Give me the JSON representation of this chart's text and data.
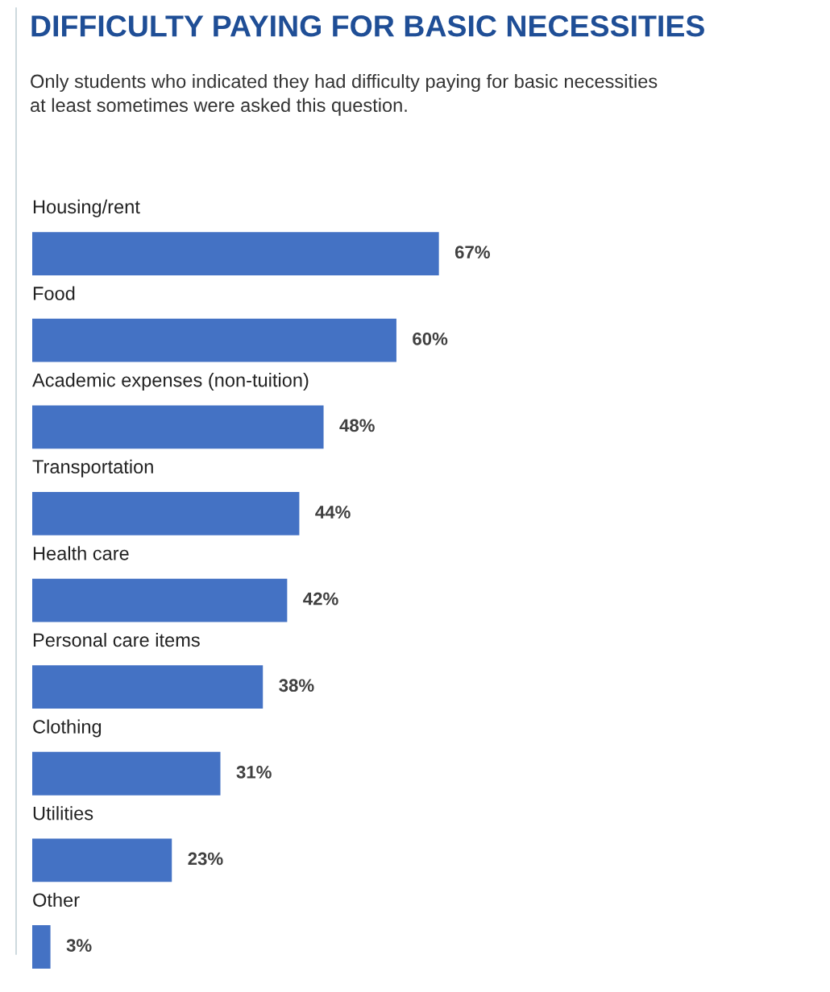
{
  "chart_data": {
    "type": "bar",
    "orientation": "horizontal",
    "title": "DIFFICULTY PAYING FOR BASIC NECESSITIES",
    "subtitle": "Only students who indicated they had difficulty paying for basic necessities\nat least sometimes were asked this question.",
    "categories": [
      "Housing/rent",
      "Food",
      "Academic expenses (non-tuition)",
      "Transportation",
      "Health care",
      "Personal care items",
      "Clothing",
      "Utilities",
      "Other"
    ],
    "values": [
      67,
      60,
      48,
      44,
      42,
      38,
      31,
      23,
      3
    ],
    "value_labels": [
      "67%",
      "60%",
      "48%",
      "44%",
      "42%",
      "38%",
      "31%",
      "23%",
      "3%"
    ],
    "color": "#4472c4",
    "grid": false,
    "legend": false,
    "tick_labels": false
  }
}
